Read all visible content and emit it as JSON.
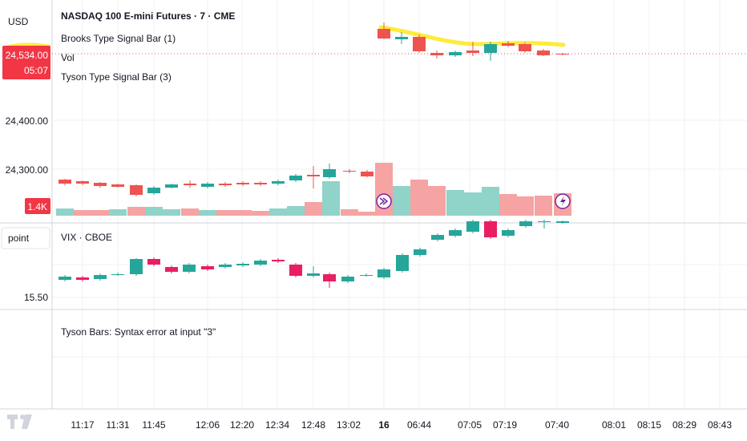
{
  "price_scale": {
    "currency": "USD",
    "last_price": "24,534.00",
    "countdown": "05:07",
    "ticks": [
      "24,400.00",
      "24,300.00"
    ],
    "volume_badge": "1.4K"
  },
  "vix_scale": {
    "unit": "point",
    "ticks": [
      "15.50"
    ]
  },
  "legend": {
    "symbol": "NASDAQ 100 E-mini Futures · 7 · CME",
    "brooks": "Brooks Type Signal Bar (1)",
    "vol": "Vol",
    "tyson": "Tyson Type Signal Bar (3)"
  },
  "vix_legend": "VIX · CBOE",
  "error_pane": {
    "message": "Tyson Bars: Syntax error at input \"3\""
  },
  "time_axis": {
    "labels": [
      {
        "t": "11:17",
        "bold": false
      },
      {
        "t": "11:31",
        "bold": false
      },
      {
        "t": "11:45",
        "bold": false
      },
      {
        "t": "12:06",
        "bold": false
      },
      {
        "t": "12:20",
        "bold": false
      },
      {
        "t": "12:34",
        "bold": false
      },
      {
        "t": "12:48",
        "bold": false
      },
      {
        "t": "13:02",
        "bold": false
      },
      {
        "t": "16",
        "bold": true
      },
      {
        "t": "06:44",
        "bold": false
      },
      {
        "t": "07:05",
        "bold": false
      },
      {
        "t": "07:19",
        "bold": false
      },
      {
        "t": "07:40",
        "bold": false
      },
      {
        "t": "08:01",
        "bold": false
      },
      {
        "t": "08:15",
        "bold": false
      },
      {
        "t": "08:29",
        "bold": false
      },
      {
        "t": "08:43",
        "bold": false
      }
    ]
  },
  "colors": {
    "up": "#26a69a",
    "down": "#ef5350",
    "vix_down": "#e91e63",
    "vol_up": "#8fd3c9",
    "vol_down": "#f5a3a3",
    "ma": "#ffeb3b",
    "badge": "#f23645",
    "grid": "#eef0f3",
    "signal": "#7b1fa2"
  },
  "icons": [
    "tv-logo-icon",
    "arrow-signal-icon",
    "lightning-signal-icon"
  ]
}
